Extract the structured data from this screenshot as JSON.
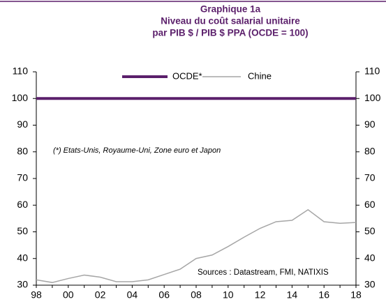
{
  "chart_data": {
    "type": "line",
    "title": [
      "Graphique 1a",
      "Niveau du coût salarial unitaire",
      "par PIB $ / PIB $ PPA (OCDE = 100)"
    ],
    "categories": [
      "98",
      null,
      "00",
      null,
      "02",
      null,
      "04",
      null,
      "06",
      null,
      "08",
      null,
      "10",
      null,
      "12",
      null,
      "14",
      null,
      "16",
      null,
      "18"
    ],
    "series": [
      {
        "name": "OCDE*",
        "color": "#5b1f6b",
        "values": [
          100,
          100,
          100,
          100,
          100,
          100,
          100,
          100,
          100,
          100,
          100,
          100,
          100,
          100,
          100,
          100,
          100,
          100,
          100,
          100,
          100
        ]
      },
      {
        "name": "Chine",
        "color": "#a6a6a6",
        "values": [
          32,
          31,
          32.5,
          33.8,
          33,
          31.3,
          31.3,
          32,
          34,
          36,
          40,
          41.3,
          44.5,
          48,
          51.3,
          53.8,
          54.3,
          58.3,
          53.8,
          53.2,
          53.5
        ]
      }
    ],
    "ylim": [
      30,
      110
    ],
    "yticks": [
      30,
      40,
      50,
      60,
      70,
      80,
      90,
      100,
      110
    ],
    "y2lim": [
      30,
      110
    ],
    "y2ticks": [
      30,
      40,
      50,
      60,
      70,
      80,
      90,
      100,
      110
    ],
    "annotations": [
      "(*) Etats-Unis, Royaume-Uni,  Zone euro et Japon",
      "Sources : Datastream,  FMI, NATIXIS"
    ]
  }
}
